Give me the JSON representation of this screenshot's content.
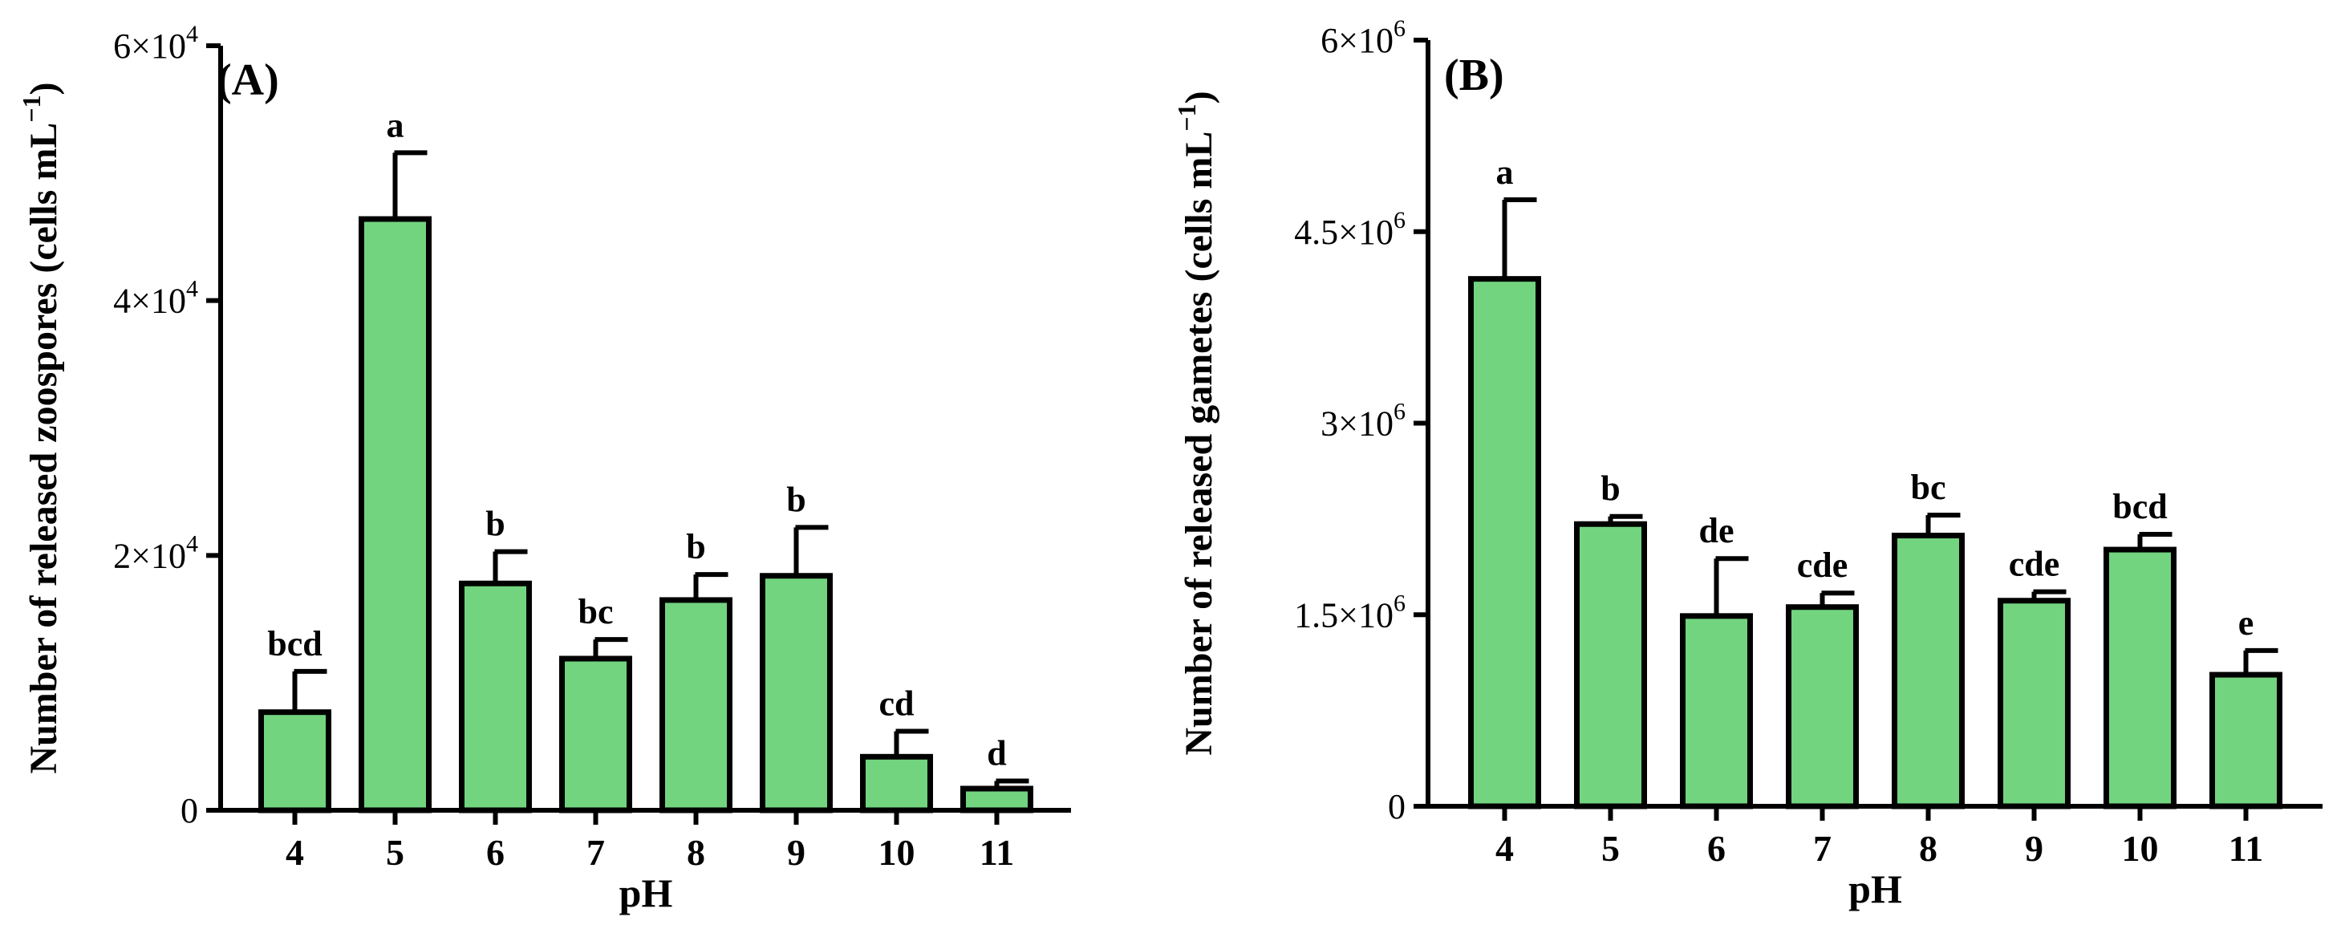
{
  "chart_data": [
    {
      "type": "bar",
      "panel_label": "(A)",
      "categories": [
        "4",
        "5",
        "6",
        "7",
        "8",
        "9",
        "10",
        "11"
      ],
      "values": [
        7700,
        46400,
        17800,
        11900,
        16500,
        18400,
        4200,
        1700
      ],
      "errors": [
        3200,
        5200,
        2500,
        1500,
        2000,
        3800,
        2000,
        600
      ],
      "letters": [
        "bcd",
        "a",
        "b",
        "bc",
        "b",
        "b",
        "cd",
        "d"
      ],
      "xlabel": "pH",
      "ylabel": "Number of released zoospores (cells mL",
      "ylabel_exp": "−1",
      "ylabel_close": ")",
      "ylim": [
        0,
        60000
      ],
      "yticks": [
        0,
        20000,
        40000,
        60000
      ],
      "ytick_labels": [
        {
          "base": "0",
          "exp": ""
        },
        {
          "base": "2×10",
          "exp": "4"
        },
        {
          "base": "4×10",
          "exp": "4"
        },
        {
          "base": "6×10",
          "exp": "4"
        }
      ],
      "bar_color": "#72d47f"
    },
    {
      "type": "bar",
      "panel_label": "(B)",
      "categories": [
        "4",
        "5",
        "6",
        "7",
        "8",
        "9",
        "10",
        "11"
      ],
      "values": [
        4130000,
        2210000,
        1490000,
        1560000,
        2120000,
        1610000,
        2010000,
        1030000
      ],
      "errors": [
        620000,
        60000,
        450000,
        110000,
        160000,
        70000,
        120000,
        190000
      ],
      "letters": [
        "a",
        "b",
        "de",
        "cde",
        "bc",
        "cde",
        "bcd",
        "e"
      ],
      "xlabel": "pH",
      "ylabel": "Number of released gametes (cells mL",
      "ylabel_exp": "−1",
      "ylabel_close": ")",
      "ylim": [
        0,
        6000000
      ],
      "yticks": [
        0,
        1500000,
        3000000,
        4500000,
        6000000
      ],
      "ytick_labels": [
        {
          "base": "0",
          "exp": ""
        },
        {
          "base": "1.5×10",
          "exp": "6"
        },
        {
          "base": "3×10",
          "exp": "6"
        },
        {
          "base": "4.5×10",
          "exp": "6"
        },
        {
          "base": "6×10",
          "exp": "6"
        }
      ],
      "bar_color": "#72d47f"
    }
  ]
}
